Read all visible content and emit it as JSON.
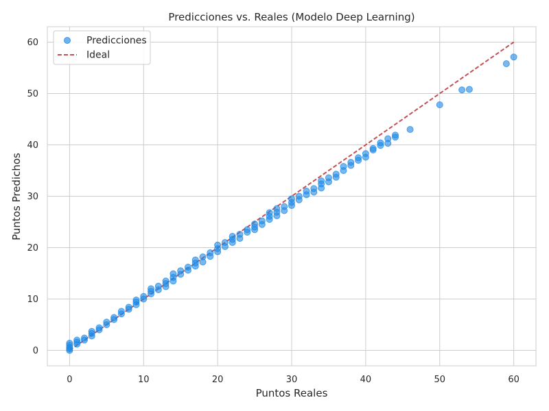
{
  "chart_data": {
    "type": "scatter",
    "title": "Predicciones vs. Reales (Modelo Deep Learning)",
    "xlabel": "Puntos Reales",
    "ylabel": "Puntos Predichos",
    "xlim": [
      -3,
      63
    ],
    "ylim": [
      -3,
      63
    ],
    "xticks": [
      0,
      10,
      20,
      30,
      40,
      50,
      60
    ],
    "yticks": [
      0,
      10,
      20,
      30,
      40,
      50,
      60
    ],
    "grid": true,
    "legend_position": "top-left",
    "series": [
      {
        "name": "Predicciones",
        "kind": "points",
        "color": "#1e88e5",
        "x": [
          0,
          0,
          0,
          0,
          0,
          1,
          1,
          1,
          2,
          2,
          3,
          3,
          3,
          4,
          4,
          5,
          5,
          6,
          6,
          7,
          7,
          8,
          8,
          9,
          9,
          9,
          10,
          10,
          11,
          11,
          11,
          12,
          12,
          13,
          13,
          13,
          14,
          14,
          14,
          15,
          15,
          16,
          16,
          17,
          17,
          17,
          18,
          18,
          19,
          19,
          20,
          20,
          20,
          21,
          21,
          22,
          22,
          22,
          23,
          23,
          24,
          24,
          25,
          25,
          25,
          26,
          26,
          27,
          27,
          27,
          28,
          28,
          28,
          29,
          29,
          30,
          30,
          30,
          31,
          31,
          32,
          32,
          33,
          33,
          34,
          34,
          34,
          35,
          35,
          36,
          36,
          37,
          37,
          38,
          38,
          39,
          39,
          40,
          40,
          41,
          41,
          42,
          42,
          43,
          43,
          44,
          44,
          46,
          50,
          53,
          54,
          59,
          60
        ],
        "y": [
          0.0,
          0.3,
          0.6,
          1.0,
          1.4,
          1.2,
          1.6,
          2.0,
          2.0,
          2.4,
          2.8,
          3.3,
          3.7,
          4.0,
          4.4,
          5.0,
          5.5,
          6.0,
          6.4,
          7.1,
          7.6,
          8.0,
          8.4,
          8.9,
          9.4,
          9.8,
          10.0,
          10.5,
          11.0,
          11.5,
          12.0,
          11.8,
          12.5,
          12.4,
          13.0,
          13.5,
          13.5,
          14.2,
          14.9,
          14.8,
          15.5,
          15.6,
          16.2,
          16.4,
          17.0,
          17.6,
          17.2,
          18.2,
          18.3,
          19.0,
          19.2,
          19.8,
          20.5,
          20.2,
          21.0,
          21.0,
          21.6,
          22.2,
          21.8,
          22.6,
          23.0,
          23.5,
          23.5,
          24.0,
          24.6,
          24.5,
          25.2,
          25.5,
          26.1,
          26.8,
          26.2,
          26.9,
          27.6,
          27.2,
          28.0,
          28.2,
          28.8,
          29.5,
          29.3,
          30.0,
          30.3,
          31.0,
          30.8,
          31.5,
          31.6,
          32.4,
          33.0,
          32.8,
          33.6,
          33.7,
          34.3,
          35.0,
          35.8,
          36.0,
          36.6,
          37.0,
          37.5,
          37.6,
          38.3,
          39.0,
          39.3,
          39.9,
          40.4,
          40.3,
          41.2,
          41.5,
          41.9,
          43.0,
          47.8,
          50.7,
          50.8,
          55.8,
          57.1
        ]
      },
      {
        "name": "Ideal",
        "kind": "dashed-line",
        "color": "#c44e52",
        "x": [
          0,
          60
        ],
        "y": [
          0,
          60
        ]
      }
    ]
  }
}
